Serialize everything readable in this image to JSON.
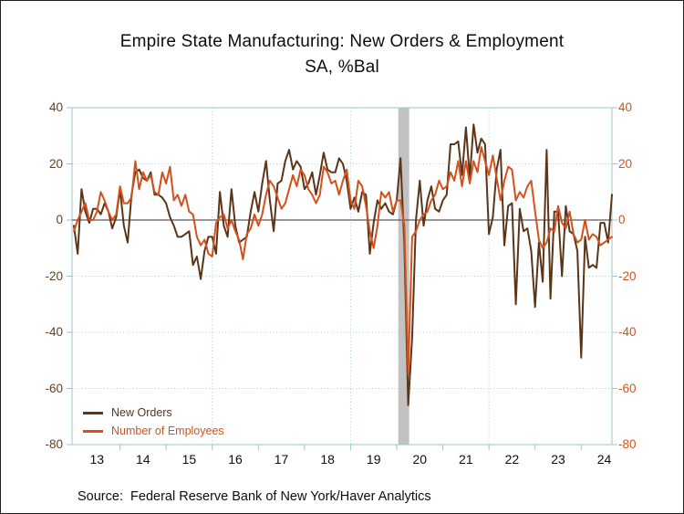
{
  "title": {
    "line1": "Empire State Manufacturing: New Orders & Employment",
    "line2": "SA, %Bal"
  },
  "source": "Source:  Federal Reserve Bank of New York/Haver Analytics",
  "legend": [
    {
      "label": "New Orders",
      "color": "#5a3518"
    },
    {
      "label": "Number of Employees",
      "color": "#d4511c"
    }
  ],
  "axes": {
    "y_ticks": [
      "40",
      "20",
      "0",
      "-20",
      "-40",
      "-60",
      "-80"
    ],
    "y_values": [
      40,
      20,
      0,
      -20,
      -40,
      -60,
      -80
    ],
    "x_labels": [
      "13",
      "14",
      "15",
      "16",
      "17",
      "18",
      "19",
      "20",
      "21",
      "22",
      "23",
      "24"
    ],
    "left_label_color": "#5f4223",
    "right_label_color": "#d4511c",
    "grid_color": "#a9d2d2",
    "frame_color": "#9cc6c6",
    "zero_line_color": "#5a5a5a"
  },
  "chart_data": {
    "type": "line",
    "frequency": "monthly",
    "x_start": "2013-01",
    "x_end": "2024-09",
    "ylim": [
      -80,
      40
    ],
    "grid": true,
    "legend_position": "inside-bottom-left",
    "recession_band": {
      "from": "2020-02",
      "to": "2020-04",
      "color": "#c2c2c2"
    },
    "vertical_gridlines": [
      "2016-01",
      "2019-01",
      "2022-01"
    ],
    "series": [
      {
        "name": "New Orders",
        "color": "#5a3518",
        "values": [
          -2,
          -12,
          11,
          3,
          -1,
          4,
          4,
          2,
          6,
          3,
          -3,
          1,
          11,
          -2,
          -8,
          9,
          17,
          18,
          15,
          14,
          17,
          9,
          9,
          8,
          6,
          1,
          -2,
          -6,
          -6,
          -5,
          -4,
          -16,
          -13,
          -21,
          -11,
          -6,
          -6,
          -12,
          10,
          -2,
          -6,
          11,
          -2,
          -8,
          -7,
          -6,
          3,
          10,
          3,
          13,
          21,
          7,
          -4,
          13,
          14,
          21,
          25,
          18,
          21,
          19,
          11,
          13,
          17,
          9,
          16,
          24,
          18,
          17,
          17,
          22,
          20,
          14,
          4,
          8,
          3,
          10,
          9,
          -12,
          -1,
          7,
          4,
          6,
          3,
          2,
          7,
          22,
          -9,
          -66,
          -42,
          0,
          14,
          -2,
          7,
          12,
          4,
          3,
          7,
          9,
          27,
          27,
          28,
          16,
          33,
          15,
          34,
          24,
          29,
          27,
          -5,
          1,
          18,
          25,
          -9,
          5,
          6,
          -30,
          4,
          -4,
          -3,
          -11,
          -31,
          -8,
          -22,
          25,
          -28,
          3,
          3,
          -20,
          5,
          -4,
          -5,
          -11,
          -49,
          -6,
          -17,
          -16,
          -17,
          -1,
          -1,
          -8,
          9
        ]
      },
      {
        "name": "Number of Employees",
        "color": "#d4511c",
        "values": [
          -4,
          0,
          3,
          6,
          0,
          0,
          3,
          10,
          7,
          3,
          0,
          2,
          12,
          6,
          6,
          8,
          21,
          11,
          17,
          14,
          16,
          10,
          9,
          17,
          13,
          19,
          7,
          9,
          5,
          9,
          3,
          2,
          -6,
          -9,
          -7,
          -12,
          -13,
          -1,
          1,
          2,
          -3,
          0,
          -4,
          -7,
          -14,
          -5,
          -3,
          2,
          -2,
          2,
          9,
          14,
          12,
          8,
          4,
          6,
          11,
          16,
          12,
          18,
          16,
          11,
          9,
          6,
          9,
          19,
          17,
          13,
          14,
          9,
          14,
          18,
          7,
          4,
          14,
          12,
          5,
          -4,
          -10,
          -2,
          10,
          8,
          10,
          3,
          7,
          7,
          -2,
          -55,
          -6,
          -4,
          0,
          2,
          3,
          7,
          9,
          14,
          11,
          12,
          17,
          14,
          21,
          12,
          21,
          13,
          21,
          17,
          26,
          21,
          16,
          23,
          15,
          7,
          14,
          19,
          18,
          7,
          10,
          8,
          12,
          14,
          3,
          -7,
          -10,
          -8,
          -3,
          -4,
          5,
          -1,
          -3,
          3,
          -5,
          -8,
          -7,
          0,
          -7,
          -5,
          -6,
          -9,
          -8,
          -7,
          -6
        ]
      }
    ]
  }
}
